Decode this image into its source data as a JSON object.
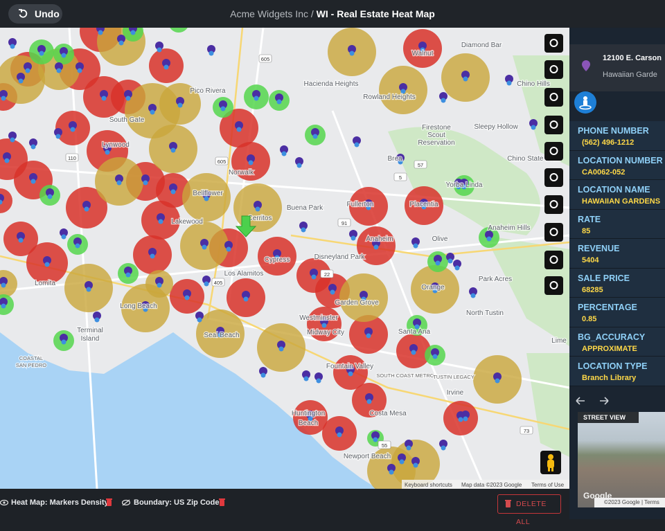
{
  "header": {
    "undo": "Undo",
    "org": "Acme Widgets Inc",
    "separator": "/",
    "title": "WI - Real Estate Heat Map"
  },
  "map": {
    "labels": [
      "Walnut",
      "Diamond Bar",
      "Chino Hills",
      "Pico Rivera",
      "Hacienda Heights",
      "Rowland Heights",
      "South Gate",
      "Sleepy Hollow",
      "Firestone",
      "Scout",
      "Reservation",
      "Lynwood",
      "Norwalk",
      "Brea",
      "Chino State Park",
      "Yorba Linda",
      "Buena Park",
      "Fullerton",
      "Placentia",
      "Anaheim",
      "Anaheim Hills",
      "Olive",
      "Cerritos",
      "Lakewood",
      "Bellflower",
      "Cypress",
      "Disneyland Park",
      "Orange",
      "Park Acres",
      "Los Alamitos",
      "Long Beach",
      "Garden Grove",
      "North Tustin",
      "Westminster",
      "Midway City",
      "Terminal",
      "Island",
      "Seal Beach",
      "Santa Ana",
      "Fountain Valley",
      "SOUTH COAST METRO",
      "TUSTIN LEGACY",
      "Irvine",
      "Huntington",
      "Beach",
      "Costa Mesa",
      "Newport Beach",
      "Lomita",
      "COASTAL",
      "SAN PEDRO",
      "Lime"
    ],
    "road_shields": [
      "605",
      "605",
      "405",
      "91",
      "5",
      "110",
      "57",
      "22",
      "55",
      "73"
    ],
    "attribution": [
      "Keyboard shortcuts",
      "Map data ©2023 Google",
      "Terms of Use"
    ]
  },
  "panel": {
    "address": [
      "12100 E. Carson",
      "Hawaiian Garde"
    ],
    "fields": [
      {
        "label": "PHONE NUMBER",
        "value": "(562) 496-1212"
      },
      {
        "label": "LOCATION NUMBER",
        "value": "CA0062-052"
      },
      {
        "label": "LOCATION NAME",
        "value": "HAWAIIAN GARDENS"
      },
      {
        "label": "RATE",
        "value": "85"
      },
      {
        "label": "REVENUE",
        "value": "5404"
      },
      {
        "label": "SALE PRICE",
        "value": "68285"
      },
      {
        "label": "PERCENTAGE",
        "value": "0.85"
      },
      {
        "label": "BG_ACCURACY",
        "value": "APPROXIMATE"
      },
      {
        "label": "LOCATION TYPE",
        "value": "Branch Library"
      }
    ],
    "street_view": {
      "label": "STREET VIEW",
      "logo": "Google",
      "copyright": "©2023 Google",
      "terms": "Terms"
    }
  },
  "footer": {
    "layers": [
      "Heat Map: Markers Density",
      "Boundary: US Zip Codes"
    ],
    "delete_all": "DELETE ALL"
  }
}
